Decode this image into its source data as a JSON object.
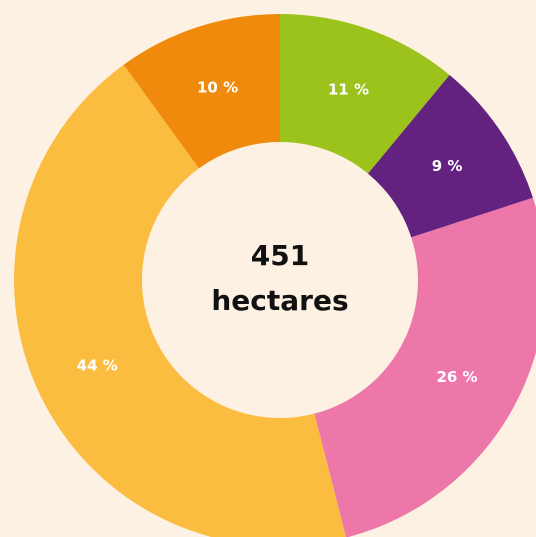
{
  "chart_data": {
    "type": "donut",
    "categories": [
      null,
      null,
      null,
      null,
      null
    ],
    "values": [
      11,
      9,
      26,
      44,
      10
    ],
    "value_labels": [
      "11 %",
      "9 %",
      "26 %",
      "44 %",
      "10 %"
    ],
    "colors": [
      "#9bc31b",
      "#632280",
      "#ed77a9",
      "#fbbd40",
      "#ef8a0d"
    ],
    "center_text": [
      "451",
      "hectares"
    ]
  }
}
